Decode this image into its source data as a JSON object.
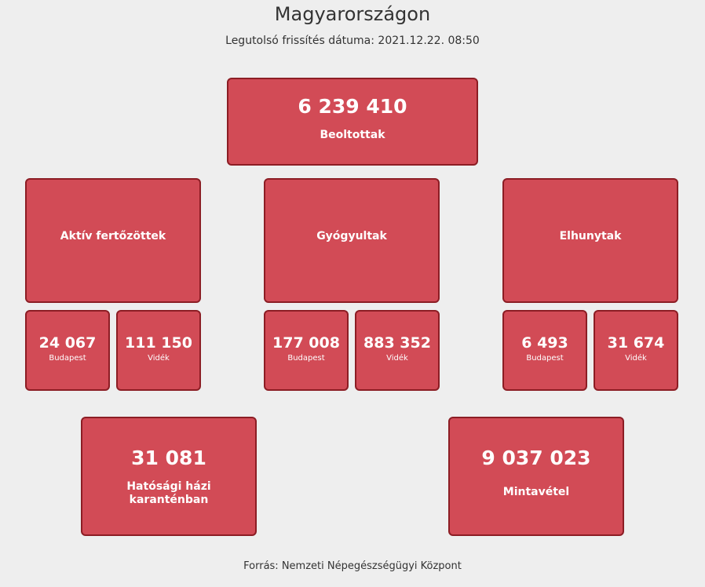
{
  "header": {
    "title": "Magyarországon",
    "last_updated": "Legutolsó frissítés dátuma: 2021.12.22. 08:50"
  },
  "vaccinated": {
    "value": "6 239 410",
    "label": "Beoltottak"
  },
  "categories": [
    {
      "label": "Aktív fertőzöttek",
      "budapest": {
        "value": "24 067",
        "label": "Budapest"
      },
      "videk": {
        "value": "111 150",
        "label": "Vidék"
      }
    },
    {
      "label": "Gyógyultak",
      "budapest": {
        "value": "177 008",
        "label": "Budapest"
      },
      "videk": {
        "value": "883 352",
        "label": "Vidék"
      }
    },
    {
      "label": "Elhunytak",
      "budapest": {
        "value": "6 493",
        "label": "Budapest"
      },
      "videk": {
        "value": "31 674",
        "label": "Vidék"
      }
    }
  ],
  "quarantine": {
    "value": "31 081",
    "label_line1": "Hatósági házi",
    "label_line2": "karanténban"
  },
  "samples": {
    "value": "9 037 023",
    "label": "Mintavétel"
  },
  "footer": {
    "source": "Forrás: Nemzeti Népegészségügyi Központ"
  },
  "colors": {
    "box_fill": "#d24b56",
    "box_border": "#8c1d24",
    "background": "#eeeeee"
  }
}
